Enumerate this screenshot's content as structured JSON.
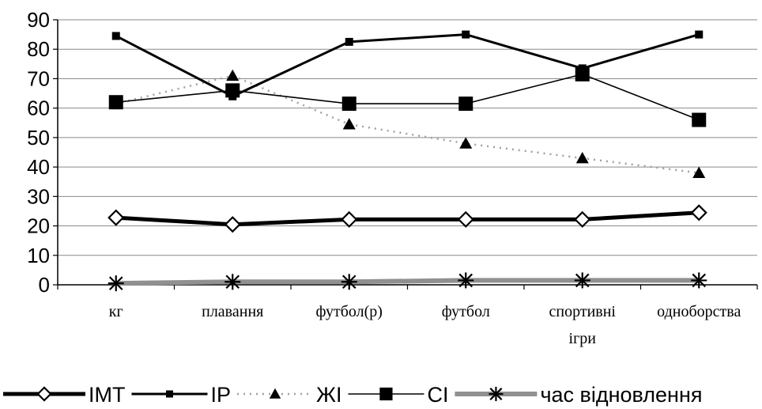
{
  "chart_data": {
    "type": "line",
    "categories": [
      [
        "кг"
      ],
      [
        "плавання"
      ],
      [
        "футбол(р)"
      ],
      [
        "футбол"
      ],
      [
        "спортивні",
        "ігри"
      ],
      [
        "одноборства"
      ]
    ],
    "ylim": [
      0,
      90
    ],
    "yticks": [
      0,
      10,
      20,
      30,
      40,
      50,
      60,
      70,
      80,
      90
    ],
    "grid": "horizontal",
    "legend_position": "bottom",
    "series": [
      {
        "name": "IMT",
        "values": [
          22.8,
          20.5,
          22.2,
          22.2,
          22.2,
          24.5
        ],
        "marker": "diamond",
        "line": "thick-solid",
        "color": "#000000"
      },
      {
        "name": "IP",
        "values": [
          84.5,
          64,
          82.5,
          85,
          73.5,
          85
        ],
        "marker": "small-square",
        "line": "solid",
        "color": "#000000"
      },
      {
        "name": "ЖІ",
        "values": [
          61.5,
          71,
          54.5,
          48,
          43,
          38
        ],
        "marker": "triangle",
        "line": "dashed-light",
        "color": "#000000",
        "line_color": "#a0a0a0"
      },
      {
        "name": "СІ",
        "values": [
          62,
          66,
          61.5,
          61.5,
          71.5,
          56
        ],
        "marker": "big-square",
        "line": "thin-solid",
        "color": "#000000"
      },
      {
        "name": "час відновлення",
        "values": [
          0.5,
          1,
          1,
          1.5,
          1.5,
          1.5
        ],
        "marker": "asterisk",
        "line": "thick-gray",
        "color": "#000000",
        "line_color": "#909090"
      }
    ]
  }
}
